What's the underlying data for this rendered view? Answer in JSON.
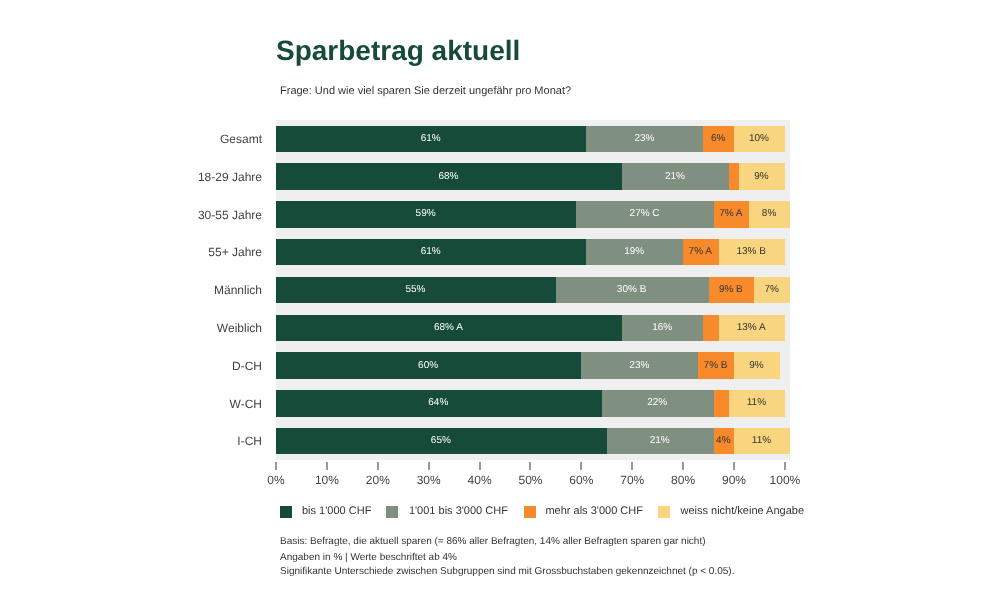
{
  "chart_data": {
    "type": "bar",
    "orientation": "horizontal",
    "stacked": true,
    "title": "Sparbetrag aktuell",
    "subtitle": "Frage: Und wie viel sparen Sie derzeit ungefähr pro Monat?",
    "categories": [
      "Gesamt",
      "18-29 Jahre",
      "30-55 Jahre",
      "55+ Jahre",
      "Männlich",
      "Weiblich",
      "D-CH",
      "W-CH",
      "I-CH"
    ],
    "series": [
      {
        "name": "bis 1'000 CHF",
        "color": "#164b3a",
        "values": [
          61,
          68,
          59,
          61,
          55,
          68,
          60,
          64,
          65
        ],
        "value_labels": [
          "61%",
          "68%",
          "59%",
          "61%",
          "55%",
          "68% A",
          "60%",
          "64%",
          "65%"
        ]
      },
      {
        "name": "1'001 bis 3'000 CHF",
        "color": "#7f8f80",
        "values": [
          23,
          21,
          27,
          19,
          30,
          16,
          23,
          22,
          21
        ],
        "value_labels": [
          "23%",
          "21%",
          "27% C",
          "19%",
          "30% B",
          "16%",
          "23%",
          "22%",
          "21%"
        ]
      },
      {
        "name": "mehr als 3'000 CHF",
        "color": "#f78a2a",
        "values": [
          6,
          2,
          7,
          7,
          9,
          3,
          7,
          3,
          4
        ],
        "value_labels": [
          "6%",
          null,
          "7% A",
          "7% A",
          "9% B",
          null,
          "7% B",
          null,
          "4%"
        ]
      },
      {
        "name": "weiss nicht/keine Angabe",
        "color": "#f8d57e",
        "values": [
          10,
          9,
          8,
          13,
          7,
          13,
          9,
          11,
          11
        ],
        "value_labels": [
          "10%",
          "9%",
          "8%",
          "13% B",
          "7%",
          "13% A",
          "9%",
          "11%",
          "11%"
        ]
      }
    ],
    "xlim": [
      0,
      101
    ],
    "xticks": [
      {
        "value": 0,
        "label": "0%"
      },
      {
        "value": 10,
        "label": "10%"
      },
      {
        "value": 20,
        "label": "20%"
      },
      {
        "value": 30,
        "label": "30%"
      },
      {
        "value": 40,
        "label": "40%"
      },
      {
        "value": 50,
        "label": "50%"
      },
      {
        "value": 60,
        "label": "60%"
      },
      {
        "value": 70,
        "label": "70%"
      },
      {
        "value": 80,
        "label": "80%"
      },
      {
        "value": 90,
        "label": "90%"
      },
      {
        "value": 100,
        "label": "100%"
      }
    ],
    "grid": false,
    "legend": "bottom",
    "annotations": [
      "Basis: Befragte, die aktuell sparen (= 86% aller Befragten, 14% aller Befragten sparen gar nicht)",
      "Angaben in % | Werte beschriftet ab 4%",
      "Signifikante Unterschiede zwischen Subgruppen sind mit Grossbuchstaben gekennzeichnet (p < 0.05)."
    ]
  }
}
